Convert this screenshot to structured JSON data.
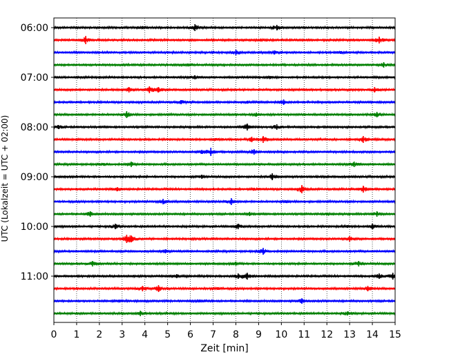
{
  "chart_data": {
    "type": "line",
    "title": "",
    "xlabel": "Zeit  [min]",
    "ylabel": "UTC (Lokalzeit = UTC + 02:00)",
    "xlim": [
      0,
      15
    ],
    "x_ticks": [
      "0",
      "1",
      "2",
      "3",
      "4",
      "5",
      "6",
      "7",
      "8",
      "9",
      "10",
      "11",
      "12",
      "13",
      "14",
      "15"
    ],
    "y_tick_labels": [
      "06:00",
      "07:00",
      "08:00",
      "09:00",
      "10:00",
      "11:00"
    ],
    "trace_interval_minutes": 15,
    "start_time": "06:00",
    "grid": "vertical dotted at each minute",
    "color_cycle": [
      "#000000",
      "#ff0000",
      "#0000ff",
      "#008000"
    ],
    "traces": [
      {
        "time": "06:00",
        "events": [
          {
            "t": 3.9,
            "a": 2
          },
          {
            "t": 6.2,
            "a": 5
          },
          {
            "t": 9.8,
            "a": 4
          }
        ]
      },
      {
        "time": "06:15",
        "events": [
          {
            "t": 1.4,
            "a": 6
          },
          {
            "t": 9.1,
            "a": 2
          },
          {
            "t": 14.3,
            "a": 5
          }
        ]
      },
      {
        "time": "06:30",
        "events": [
          {
            "t": 8.0,
            "a": 4
          },
          {
            "t": 9.7,
            "a": 3
          },
          {
            "t": 12.6,
            "a": 2
          }
        ]
      },
      {
        "time": "06:45",
        "events": [
          {
            "t": 5.9,
            "a": 2
          },
          {
            "t": 14.5,
            "a": 4
          }
        ]
      },
      {
        "time": "07:00",
        "events": [
          {
            "t": 6.2,
            "a": 3
          },
          {
            "t": 9.5,
            "a": 2
          }
        ]
      },
      {
        "time": "07:15",
        "events": [
          {
            "t": 3.3,
            "a": 4
          },
          {
            "t": 4.2,
            "a": 5
          },
          {
            "t": 4.6,
            "a": 4
          },
          {
            "t": 14.1,
            "a": 4
          }
        ]
      },
      {
        "time": "07:30",
        "events": [
          {
            "t": 5.6,
            "a": 3
          },
          {
            "t": 10.1,
            "a": 4
          },
          {
            "t": 8.5,
            "a": 2
          }
        ]
      },
      {
        "time": "07:45",
        "events": [
          {
            "t": 3.2,
            "a": 5
          },
          {
            "t": 8.9,
            "a": 3
          },
          {
            "t": 14.2,
            "a": 4
          }
        ]
      },
      {
        "time": "08:00",
        "events": [
          {
            "t": 0.2,
            "a": 3
          },
          {
            "t": 8.5,
            "a": 5
          },
          {
            "t": 9.8,
            "a": 4
          }
        ]
      },
      {
        "time": "08:15",
        "events": [
          {
            "t": 7.1,
            "a": 2
          },
          {
            "t": 8.7,
            "a": 4
          },
          {
            "t": 9.2,
            "a": 5
          },
          {
            "t": 13.6,
            "a": 5
          }
        ]
      },
      {
        "time": "08:30",
        "events": [
          {
            "t": 6.5,
            "a": 3
          },
          {
            "t": 6.9,
            "a": 6
          },
          {
            "t": 8.8,
            "a": 4
          }
        ]
      },
      {
        "time": "08:45",
        "events": [
          {
            "t": 2.2,
            "a": 2
          },
          {
            "t": 3.4,
            "a": 4
          },
          {
            "t": 13.2,
            "a": 4
          }
        ]
      },
      {
        "time": "09:00",
        "events": [
          {
            "t": 6.5,
            "a": 3
          },
          {
            "t": 9.6,
            "a": 5
          }
        ]
      },
      {
        "time": "09:15",
        "events": [
          {
            "t": 2.8,
            "a": 3
          },
          {
            "t": 8.8,
            "a": 2
          },
          {
            "t": 10.9,
            "a": 6
          },
          {
            "t": 13.6,
            "a": 5
          }
        ]
      },
      {
        "time": "09:30",
        "events": [
          {
            "t": 4.8,
            "a": 4
          },
          {
            "t": 7.8,
            "a": 5
          },
          {
            "t": 10.2,
            "a": 2
          }
        ]
      },
      {
        "time": "09:45",
        "events": [
          {
            "t": 1.6,
            "a": 4
          },
          {
            "t": 8.6,
            "a": 3
          },
          {
            "t": 12.0,
            "a": 2
          },
          {
            "t": 14.2,
            "a": 4
          }
        ]
      },
      {
        "time": "10:00",
        "events": [
          {
            "t": 2.7,
            "a": 4
          },
          {
            "t": 8.1,
            "a": 4
          },
          {
            "t": 12.9,
            "a": 2
          },
          {
            "t": 14.0,
            "a": 4
          }
        ]
      },
      {
        "time": "10:15",
        "events": [
          {
            "t": 3.2,
            "a": 6
          },
          {
            "t": 3.4,
            "a": 5
          },
          {
            "t": 13.0,
            "a": 4
          }
        ]
      },
      {
        "time": "10:30",
        "events": [
          {
            "t": 4.9,
            "a": 3
          },
          {
            "t": 9.2,
            "a": 5
          }
        ]
      },
      {
        "time": "10:45",
        "events": [
          {
            "t": 1.7,
            "a": 4
          },
          {
            "t": 8.0,
            "a": 3
          },
          {
            "t": 13.4,
            "a": 4
          }
        ]
      },
      {
        "time": "11:00",
        "events": [
          {
            "t": 5.4,
            "a": 3
          },
          {
            "t": 8.1,
            "a": 4
          },
          {
            "t": 8.5,
            "a": 5
          },
          {
            "t": 14.3,
            "a": 4
          },
          {
            "t": 14.9,
            "a": 5
          }
        ]
      },
      {
        "time": "11:15",
        "events": [
          {
            "t": 3.9,
            "a": 4
          },
          {
            "t": 4.6,
            "a": 5
          },
          {
            "t": 7.2,
            "a": 2
          },
          {
            "t": 13.8,
            "a": 4
          }
        ]
      },
      {
        "time": "11:30",
        "events": [
          {
            "t": 2.9,
            "a": 2
          },
          {
            "t": 6.4,
            "a": 2
          },
          {
            "t": 10.9,
            "a": 4
          }
        ]
      },
      {
        "time": "11:45",
        "events": [
          {
            "t": 3.8,
            "a": 4
          },
          {
            "t": 12.9,
            "a": 3
          }
        ]
      }
    ]
  }
}
